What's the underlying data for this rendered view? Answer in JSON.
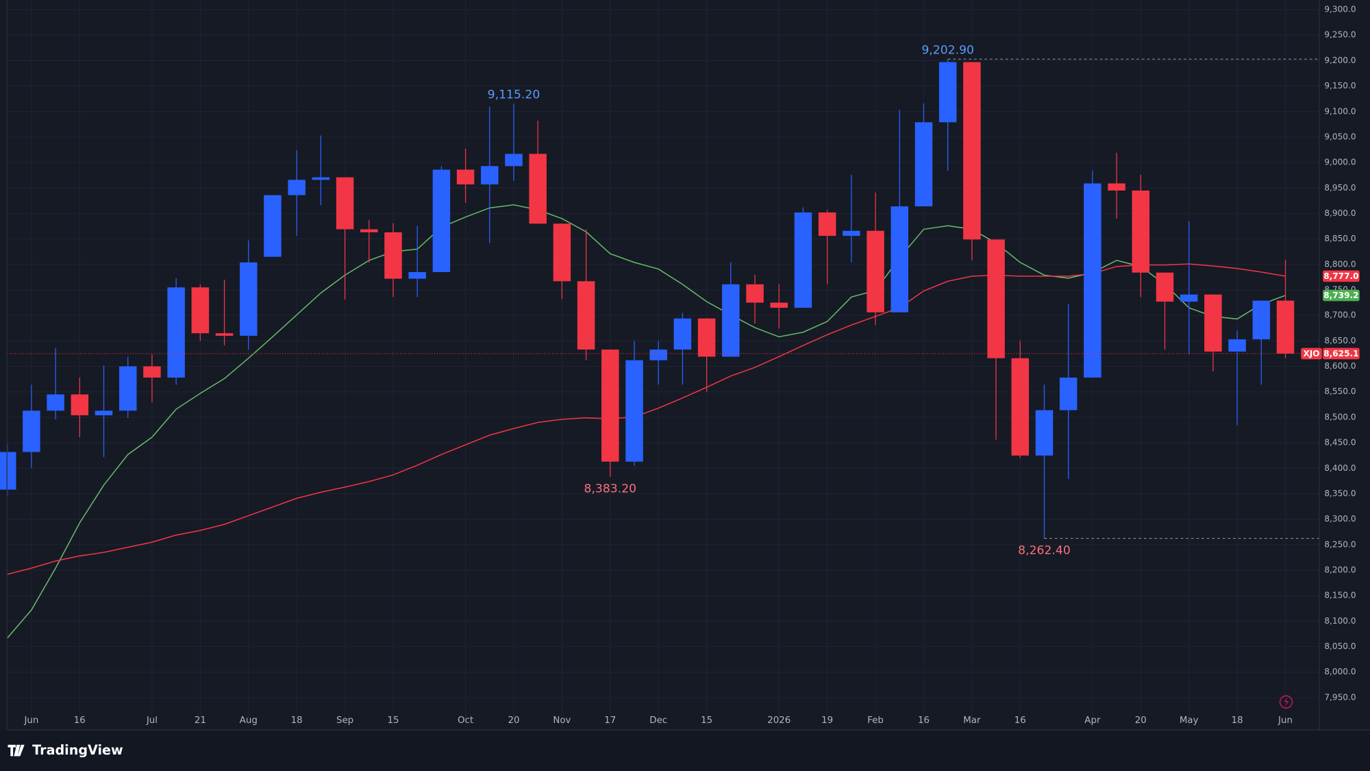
{
  "chart_data": {
    "type": "candlestick",
    "symbol": "XJO",
    "categories": [
      null,
      "Jun",
      null,
      "16",
      null,
      null,
      "Jul",
      null,
      "21",
      null,
      "Aug",
      null,
      "18",
      null,
      "Sep",
      null,
      "15",
      null,
      null,
      "Oct",
      null,
      "20",
      null,
      "Nov",
      null,
      "17",
      null,
      "Dec",
      null,
      "15",
      null,
      null,
      "2026",
      null,
      "19",
      null,
      "Feb",
      null,
      "16",
      null,
      "Mar",
      null,
      "16",
      null,
      null,
      "Apr",
      null,
      "20",
      null,
      "May",
      null,
      "18",
      null,
      "Jun"
    ],
    "open": [
      8358,
      8432,
      8513,
      8545,
      8504,
      8513,
      8600,
      8578,
      8755,
      8665,
      8660,
      8815,
      8936,
      8966,
      8971,
      8869,
      8863,
      8772,
      8785,
      8986,
      8957,
      8993,
      9017,
      8880,
      8767,
      8633,
      8413,
      8612,
      8633,
      8694,
      8619,
      8761,
      8725,
      8715,
      8902,
      8856,
      8866,
      8706,
      8914,
      9079,
      9197,
      8849,
      8616,
      8425,
      8514,
      8578,
      8959,
      8945,
      8784,
      8727,
      8741,
      8629,
      8653,
      8729
    ],
    "high": [
      8449,
      8564,
      8636,
      8578,
      8602,
      8619,
      8624,
      8773,
      8761,
      8770,
      8847,
      8936,
      9024,
      9053,
      8971,
      8887,
      8881,
      8876,
      8993,
      9027,
      9110,
      9115.2,
      9082,
      8880,
      8869,
      8633,
      8650,
      8650,
      8705,
      8694,
      8804,
      8780,
      8761,
      8912,
      8907,
      8976,
      8941,
      9103,
      9116,
      9202.9,
      9197,
      8849,
      8650,
      8564,
      8722,
      8984,
      9019,
      8976,
      8784,
      8885,
      8741,
      8670,
      8729,
      8809
    ],
    "low": [
      8345,
      8401,
      8496,
      8461,
      8422,
      8499,
      8530,
      8564,
      8650,
      8641,
      8633,
      8815,
      8856,
      8916,
      8731,
      8804,
      8736,
      8736,
      8785,
      8921,
      8842,
      8964,
      8880,
      8732,
      8612,
      8383.2,
      8405,
      8564,
      8564,
      8550,
      8619,
      8684,
      8674,
      8715,
      8761,
      8804,
      8681,
      8706,
      8914,
      8984,
      8808,
      8456,
      8420,
      8262.4,
      8379,
      8578,
      8890,
      8736,
      8633,
      8624,
      8590,
      8484,
      8564,
      8616
    ],
    "close": [
      8432,
      8513,
      8545,
      8504,
      8513,
      8600,
      8578,
      8755,
      8665,
      8660,
      8804,
      8936,
      8966,
      8971,
      8869,
      8863,
      8772,
      8785,
      8986,
      8957,
      8993,
      9017,
      8880,
      8767,
      8633,
      8413,
      8612,
      8633,
      8694,
      8619,
      8761,
      8725,
      8715,
      8902,
      8856,
      8866,
      8706,
      8914,
      9079,
      9197,
      8849,
      8616,
      8425,
      8514,
      8578,
      8959,
      8945,
      8784,
      8727,
      8741,
      8629,
      8653,
      8729,
      8625.1
    ],
    "up_color": "#2962ff",
    "down_color": "#f23645",
    "series": [
      {
        "color": "#66bb6a",
        "values": [
          8067,
          8122,
          8204,
          8293,
          8367,
          8427,
          8461,
          8516,
          8547,
          8576,
          8616,
          8658,
          8701,
          8744,
          8779,
          8808,
          8825,
          8830,
          8873,
          8893,
          8911,
          8917,
          8907,
          8890,
          8864,
          8821,
          8804,
          8791,
          8761,
          8727,
          8701,
          8676,
          8658,
          8667,
          8688,
          8736,
          8749,
          8813,
          8869,
          8876,
          8869,
          8842,
          8804,
          8779,
          8773,
          8784,
          8808,
          8796,
          8761,
          8715,
          8698,
          8693,
          8722,
          8739.2
        ]
      },
      {
        "color": "#f23645",
        "values": [
          8192,
          8204,
          8218,
          8228,
          8235,
          8245,
          8255,
          8269,
          8278,
          8290,
          8307,
          8324,
          8341,
          8353,
          8363,
          8374,
          8387,
          8406,
          8427,
          8446,
          8465,
          8478,
          8490,
          8496,
          8499,
          8497,
          8501,
          8518,
          8538,
          8559,
          8581,
          8598,
          8619,
          8641,
          8662,
          8681,
          8698,
          8715,
          8748,
          8767,
          8777,
          8779,
          8777,
          8777,
          8777,
          8782,
          8796,
          8799,
          8799,
          8801,
          8797,
          8792,
          8785,
          8777.0
        ]
      }
    ],
    "annotations": [
      {
        "at": 21,
        "value": 9115.2,
        "label": "9,115.20",
        "kind": "high",
        "line": false
      },
      {
        "at": 39,
        "value": 9202.9,
        "label": "9,202.90",
        "kind": "high",
        "line": true
      },
      {
        "at": 25,
        "value": 8383.2,
        "label": "8,383.20",
        "kind": "low",
        "line": false
      },
      {
        "at": 43,
        "value": 8262.4,
        "label": "8,262.40",
        "kind": "low",
        "line": true
      }
    ],
    "price_labels": [
      {
        "value": 8777.0,
        "label": "8,777.0",
        "color": "#f23645"
      },
      {
        "value": 8739.2,
        "label": "8,739.2",
        "color": "#4caf50"
      },
      {
        "value": 8625.1,
        "label": "8,625.1",
        "color": "#f23645"
      }
    ],
    "ylim": [
      7886.6,
      9318.9
    ],
    "yticks": [
      {
        "value": 7950,
        "label": "7,950.0"
      },
      {
        "value": 8000,
        "label": "8,000.0"
      },
      {
        "value": 8050,
        "label": "8,050.0"
      },
      {
        "value": 8100,
        "label": "8,100.0"
      },
      {
        "value": 8150,
        "label": "8,150.0"
      },
      {
        "value": 8200,
        "label": "8,200.0"
      },
      {
        "value": 8250,
        "label": "8,250.0"
      },
      {
        "value": 8300,
        "label": "8,300.0"
      },
      {
        "value": 8350,
        "label": "8,350.0"
      },
      {
        "value": 8400,
        "label": "8,400.0"
      },
      {
        "value": 8450,
        "label": "8,450.0"
      },
      {
        "value": 8500,
        "label": "8,500.0"
      },
      {
        "value": 8550,
        "label": "8,550.0"
      },
      {
        "value": 8600,
        "label": "8,600.0"
      },
      {
        "value": 8650,
        "label": "8,650.0"
      },
      {
        "value": 8700,
        "label": "8,700.0"
      },
      {
        "value": 8750,
        "label": "8,750.0"
      },
      {
        "value": 8800,
        "label": "8,800.0"
      },
      {
        "value": 8850,
        "label": "8,850.0"
      },
      {
        "value": 8900,
        "label": "8,900.0"
      },
      {
        "value": 8950,
        "label": "8,950.0"
      },
      {
        "value": 9000,
        "label": "9,000.0"
      },
      {
        "value": 9050,
        "label": "9,050.0"
      },
      {
        "value": 9100,
        "label": "9,100.0"
      },
      {
        "value": 9150,
        "label": "9,150.0"
      },
      {
        "value": 9200,
        "label": "9,200.0"
      },
      {
        "value": 9250,
        "label": "9,250.0"
      },
      {
        "value": 9300,
        "label": "9,300.0"
      }
    ],
    "grid": true
  },
  "footer": {
    "brand": "TradingView"
  }
}
